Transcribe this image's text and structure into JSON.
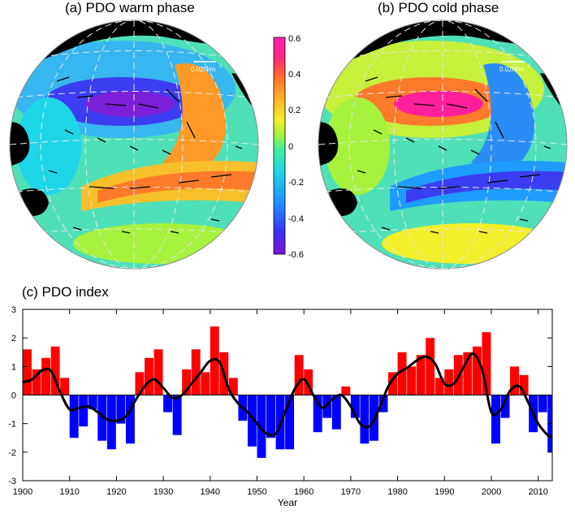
{
  "panel_a": {
    "title": "(a) PDO warm phase",
    "scale_label": "0.02N/m",
    "scale_exp": "2"
  },
  "panel_b": {
    "title": "(b) PDO cold phase",
    "scale_label": "0.02N/m",
    "scale_exp": "2"
  },
  "colorbar": {
    "ticks": [
      "0.6",
      "0.4",
      "0.2",
      "0",
      "-0.2",
      "-0.4",
      "-0.6"
    ],
    "colors": [
      "#7b16d8",
      "#3b2ff0",
      "#1f86ff",
      "#1fd6e8",
      "#3ef09e",
      "#a6f23c",
      "#f3ef2a",
      "#ffb026",
      "#ff6a2a",
      "#ff2a7a",
      "#ff1fb6"
    ]
  },
  "colors": {
    "positive": "#ff0000",
    "negative": "#0000ff",
    "smooth": "#000000",
    "land": "#000000"
  },
  "panel_c": {
    "title": "(c) PDO index"
  },
  "chart_data": {
    "type": "bar",
    "title": "(c) PDO index",
    "xlabel": "Year",
    "ylabel": "",
    "xlim": [
      1900,
      2013
    ],
    "ylim": [
      -3,
      3
    ],
    "x_ticks": [
      "1900",
      "1910",
      "1920",
      "1930",
      "1940",
      "1950",
      "1960",
      "1970",
      "1980",
      "1990",
      "2000",
      "2010"
    ],
    "y_ticks": [
      "3",
      "2",
      "1",
      "0",
      "-1",
      "-2",
      "-3"
    ],
    "series": [
      {
        "style": "monthly bars (red above 0, blue below 0)",
        "years": [
          1900,
          1902,
          1904,
          1906,
          1908,
          1910,
          1912,
          1914,
          1916,
          1918,
          1920,
          1922,
          1924,
          1926,
          1928,
          1930,
          1932,
          1934,
          1936,
          1938,
          1940,
          1942,
          1944,
          1946,
          1948,
          1950,
          1952,
          1954,
          1956,
          1958,
          1960,
          1962,
          1964,
          1966,
          1968,
          1970,
          1972,
          1974,
          1976,
          1978,
          1980,
          1982,
          1984,
          1986,
          1988,
          1990,
          1992,
          1994,
          1996,
          1998,
          2000,
          2002,
          2004,
          2006,
          2008,
          2010,
          2012
        ],
        "values": [
          1.6,
          0.9,
          1.3,
          1.7,
          0.6,
          -1.5,
          -1.1,
          -0.5,
          -1.6,
          -1.9,
          -1.0,
          -1.7,
          0.8,
          1.3,
          1.6,
          -0.6,
          -1.4,
          0.9,
          1.6,
          0.8,
          2.4,
          1.5,
          0.6,
          -0.9,
          -1.8,
          -2.2,
          -1.5,
          -1.9,
          -1.9,
          1.4,
          0.9,
          -1.3,
          -0.8,
          -1.2,
          0.3,
          -0.8,
          -1.7,
          -1.6,
          -0.6,
          0.8,
          1.5,
          1.0,
          1.4,
          2.0,
          0.6,
          0.9,
          1.4,
          1.5,
          1.7,
          2.2,
          -1.7,
          -0.8,
          1.0,
          0.7,
          -1.3,
          -0.6,
          -2.0
        ]
      },
      {
        "style": "smoothed line",
        "years": [
          1900,
          1902,
          1904,
          1906,
          1908,
          1910,
          1912,
          1914,
          1916,
          1918,
          1920,
          1922,
          1924,
          1926,
          1928,
          1930,
          1932,
          1934,
          1936,
          1938,
          1940,
          1942,
          1944,
          1946,
          1948,
          1950,
          1952,
          1954,
          1956,
          1958,
          1960,
          1962,
          1964,
          1966,
          1968,
          1970,
          1972,
          1974,
          1976,
          1978,
          1980,
          1982,
          1984,
          1986,
          1988,
          1990,
          1992,
          1994,
          1996,
          1998,
          2000,
          2002,
          2004,
          2006,
          2008,
          2010,
          2012,
          2013
        ],
        "values": [
          0.45,
          0.55,
          0.85,
          0.85,
          0.1,
          -0.5,
          -0.45,
          -0.4,
          -0.6,
          -0.85,
          -0.9,
          -0.75,
          -0.2,
          0.3,
          0.55,
          0.25,
          -0.1,
          0.0,
          0.4,
          0.8,
          1.2,
          1.15,
          0.2,
          -0.3,
          -0.6,
          -1.0,
          -1.35,
          -1.35,
          -0.6,
          0.2,
          0.55,
          0.0,
          -0.45,
          -0.15,
          0.0,
          -0.4,
          -1.0,
          -1.1,
          -0.5,
          0.3,
          0.75,
          0.95,
          1.2,
          1.35,
          1.1,
          0.4,
          0.4,
          0.95,
          1.45,
          0.9,
          -0.6,
          -0.5,
          0.15,
          0.3,
          -0.3,
          -1.0,
          -1.4,
          -1.5
        ]
      }
    ]
  }
}
